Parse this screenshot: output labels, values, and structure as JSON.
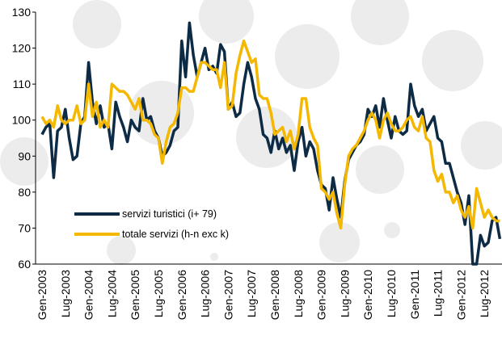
{
  "chart_data": {
    "type": "line",
    "categories": [
      "Gen-2003",
      null,
      null,
      null,
      null,
      null,
      "Lug-2003",
      null,
      null,
      null,
      null,
      null,
      "Gen-2004",
      null,
      null,
      null,
      null,
      null,
      "Lug-2004",
      null,
      null,
      null,
      null,
      null,
      "Gen-2005",
      null,
      null,
      null,
      null,
      null,
      "Lug-2005",
      null,
      null,
      null,
      null,
      null,
      "Gen-2006",
      null,
      null,
      null,
      null,
      null,
      "Lug-2006",
      null,
      null,
      null,
      null,
      null,
      "Gen-2007",
      null,
      null,
      null,
      null,
      null,
      "Lug-2007",
      null,
      null,
      null,
      null,
      null,
      "Gen-2008",
      null,
      null,
      null,
      null,
      null,
      "Lug-2008",
      null,
      null,
      null,
      null,
      null,
      "Gen-2009",
      null,
      null,
      null,
      null,
      null,
      "Lug-2009",
      null,
      null,
      null,
      null,
      null,
      "Gen-2010",
      null,
      null,
      null,
      null,
      null,
      "Lug-2010",
      null,
      null,
      null,
      null,
      null,
      "Gen-2011",
      null,
      null,
      null,
      null,
      null,
      "Lug-2011",
      null,
      null,
      null,
      null,
      null,
      "Gen-2012",
      null,
      null,
      null,
      null,
      null,
      "Lug-2012",
      null,
      null,
      null,
      null
    ],
    "series": [
      {
        "name": "servizi turistici (i+ 79)",
        "color": "#0d2b45",
        "values": [
          96,
          98,
          99,
          84,
          97,
          98,
          103,
          95,
          89,
          90,
          99,
          101,
          116,
          105,
          99,
          104,
          98,
          99,
          92,
          105,
          101,
          98,
          94,
          100,
          98,
          97,
          106,
          100,
          101,
          97,
          95,
          90,
          91,
          93,
          97,
          98,
          122,
          112,
          127,
          118,
          112,
          116,
          120,
          114,
          115,
          113,
          121,
          119,
          103,
          105,
          101,
          102,
          110,
          116,
          112,
          106,
          103,
          96,
          95,
          91,
          97,
          92,
          95,
          91,
          93,
          86,
          94,
          98,
          90,
          94,
          92,
          86,
          82,
          81,
          75,
          84,
          78,
          73,
          83,
          89,
          91,
          93,
          94,
          96,
          103,
          101,
          104,
          98,
          106,
          100,
          95,
          101,
          97,
          96,
          97,
          110,
          104,
          101,
          103,
          97,
          99,
          101,
          95,
          94,
          88,
          88,
          84,
          80,
          77,
          71,
          79,
          60,
          60,
          68,
          65,
          66,
          72,
          73,
          67
        ]
      },
      {
        "name": "totale servizi (h-n exc k)",
        "color": "#f5b800",
        "values": [
          101,
          99,
          100,
          98,
          104,
          100,
          99,
          100,
          100,
          104,
          99,
          100,
          110,
          101,
          105,
          98,
          100,
          98,
          110,
          109,
          108,
          108,
          107,
          105,
          103,
          106,
          100,
          100,
          99,
          96,
          95,
          88,
          94,
          98,
          99,
          102,
          109,
          109,
          108,
          108,
          112,
          116,
          116,
          115,
          114,
          114,
          109,
          116,
          103,
          104,
          113,
          118,
          122,
          119,
          116,
          117,
          107,
          106,
          106,
          102,
          96,
          97,
          98,
          94,
          97,
          92,
          96,
          106,
          106,
          98,
          95,
          93,
          81,
          80,
          78,
          80,
          74,
          70,
          82,
          90,
          92,
          93,
          95,
          97,
          100,
          102,
          100,
          95,
          100,
          102,
          99,
          97,
          97,
          98,
          100,
          101,
          98,
          97,
          101,
          95,
          94,
          86,
          83,
          85,
          80,
          80,
          77,
          79,
          75,
          73,
          76,
          70,
          81,
          77,
          73,
          75,
          73,
          72,
          72
        ]
      }
    ],
    "ylim": [
      60,
      130
    ],
    "yticks": [
      60,
      70,
      80,
      90,
      100,
      110,
      120,
      130
    ]
  }
}
